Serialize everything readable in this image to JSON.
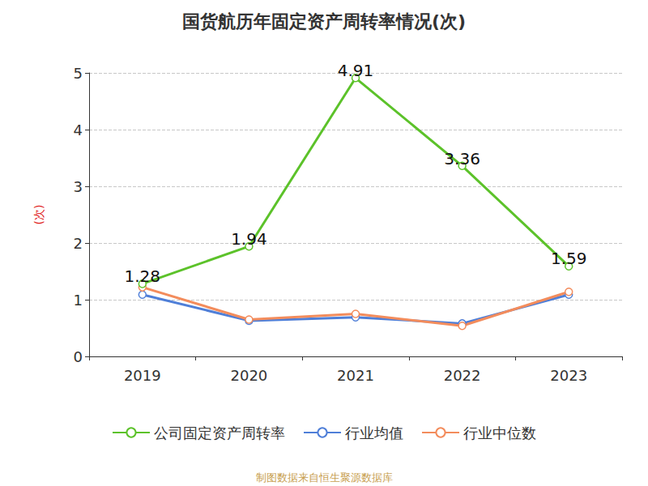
{
  "chart_data": {
    "type": "line",
    "title": "国货航历年固定资产周转率情况(次)",
    "y_label": "(次)",
    "source": "制图数据来自恒生聚源数据库",
    "categories": [
      "2019",
      "2020",
      "2021",
      "2022",
      "2023"
    ],
    "series": [
      {
        "name": "公司固定资产周转率",
        "color": "#5cc22a",
        "values": [
          1.28,
          1.94,
          4.91,
          3.36,
          1.59
        ],
        "data_labels": true,
        "marker": "circle"
      },
      {
        "name": "行业均值",
        "color": "#4f7fd8",
        "values": [
          1.09,
          0.63,
          0.69,
          0.58,
          1.09
        ],
        "data_labels": false,
        "marker": "circle"
      },
      {
        "name": "行业中位数",
        "color": "#f38c5c",
        "values": [
          1.22,
          0.65,
          0.75,
          0.54,
          1.14
        ],
        "data_labels": false,
        "marker": "circle"
      }
    ],
    "ylim": [
      0,
      5
    ],
    "yticks": [
      0,
      1,
      2,
      3,
      4,
      5
    ],
    "grid": true,
    "legend": "bottom"
  }
}
